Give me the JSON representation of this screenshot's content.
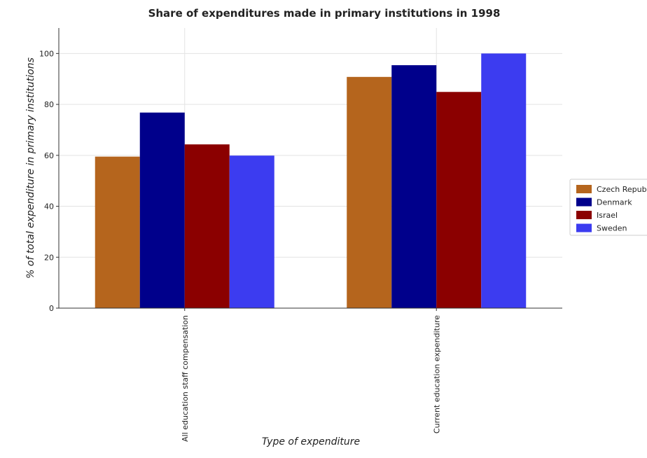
{
  "chart_data": {
    "type": "bar",
    "title": "Share of expenditures made in primary institutions in 1998",
    "xlabel": "Type of expenditure",
    "ylabel": "% of total expenditure in primary institutions",
    "categories": [
      "All education staff compensation",
      "Current education expenditure"
    ],
    "ylim": [
      0,
      110
    ],
    "yticks": [
      0,
      20,
      40,
      60,
      80,
      100
    ],
    "grid": true,
    "legend_position": "right",
    "series": [
      {
        "name": "Czech Republic",
        "color": "#b5651d",
        "values": [
          59.5,
          90.8
        ]
      },
      {
        "name": "Denmark",
        "color": "#00008b",
        "values": [
          76.8,
          95.4
        ]
      },
      {
        "name": "Israel",
        "color": "#8b0000",
        "values": [
          64.3,
          84.9
        ]
      },
      {
        "name": "Sweden",
        "color": "#3c3cf0",
        "values": [
          59.9,
          100.0
        ]
      }
    ]
  }
}
